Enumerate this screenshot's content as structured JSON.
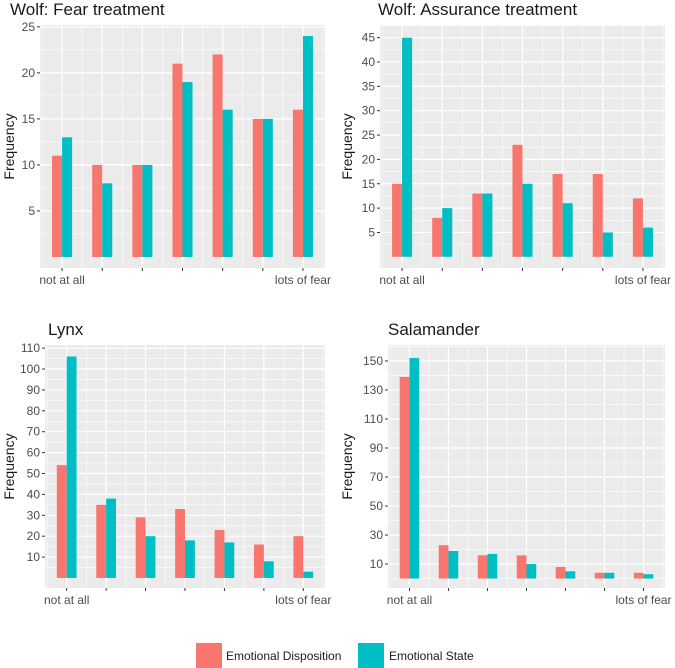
{
  "chart_data": [
    {
      "type": "bar",
      "title": "Wolf: Fear treatment",
      "ylabel": "Frequency",
      "xlabel": "",
      "categories": [
        "not at all",
        "",
        "",
        "",
        "",
        "",
        "lots of fear"
      ],
      "ylim": [
        -1.2,
        25.2
      ],
      "yticks": [
        5,
        10,
        15,
        20,
        25
      ],
      "series": [
        {
          "name": "Emotional Disposition",
          "values": [
            11,
            10,
            10,
            21,
            22,
            15,
            16
          ]
        },
        {
          "name": "Emotional State",
          "values": [
            13,
            8,
            10,
            19,
            16,
            15,
            24
          ]
        }
      ]
    },
    {
      "type": "bar",
      "title": "Wolf: Assurance treatment",
      "ylabel": "Frequency",
      "xlabel": "",
      "categories": [
        "not at all",
        "",
        "",
        "",
        "",
        "",
        "lots of fear"
      ],
      "ylim": [
        -2.3,
        47.6
      ],
      "yticks": [
        5,
        10,
        15,
        20,
        25,
        30,
        35,
        40,
        45
      ],
      "series": [
        {
          "name": "Emotional Disposition",
          "values": [
            15,
            8,
            13,
            23,
            17,
            17,
            12
          ]
        },
        {
          "name": "Emotional State",
          "values": [
            45,
            10,
            13,
            15,
            11,
            5,
            6
          ]
        }
      ]
    },
    {
      "type": "bar",
      "title": "Lynx",
      "ylabel": "Frequency",
      "xlabel": "",
      "categories": [
        "not at all",
        "",
        "",
        "",
        "",
        "",
        "lots of fear"
      ],
      "ylim": [
        -4.8,
        111.5
      ],
      "yticks": [
        10,
        20,
        30,
        40,
        50,
        60,
        70,
        80,
        90,
        100,
        110
      ],
      "series": [
        {
          "name": "Emotional Disposition",
          "values": [
            54,
            35,
            29,
            33,
            23,
            16,
            20
          ]
        },
        {
          "name": "Emotional State",
          "values": [
            106,
            38,
            20,
            18,
            17,
            8,
            3
          ]
        }
      ]
    },
    {
      "type": "bar",
      "title": "Salamander",
      "ylabel": "Frequency",
      "xlabel": "",
      "categories": [
        "not at all",
        "",
        "",
        "",
        "",
        "",
        "lots of fear"
      ],
      "ylim": [
        -6.5,
        161
      ],
      "yticks": [
        10,
        30,
        50,
        70,
        90,
        110,
        130,
        150
      ],
      "series": [
        {
          "name": "Emotional Disposition",
          "values": [
            139,
            23,
            16,
            16,
            8,
            4,
            4
          ]
        },
        {
          "name": "Emotional State",
          "values": [
            152,
            19,
            17,
            10,
            5,
            4,
            3
          ]
        }
      ]
    }
  ],
  "legend": {
    "position": "bottom",
    "entries": [
      "Emotional Disposition",
      "Emotional State"
    ]
  },
  "colors": {
    "Emotional Disposition": "#F8766D",
    "Emotional State": "#00BFC4",
    "panel": "#EBEBEB"
  }
}
